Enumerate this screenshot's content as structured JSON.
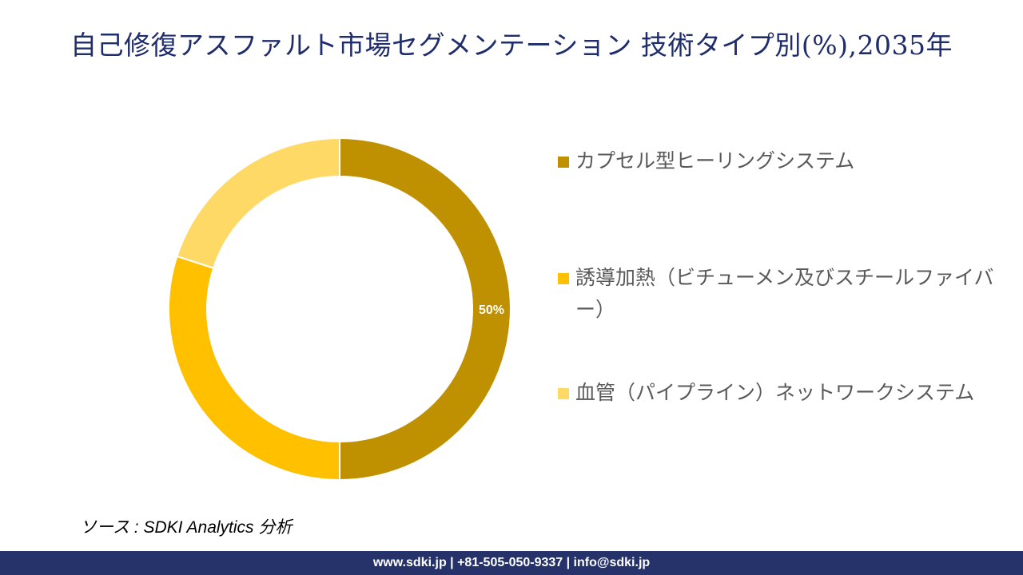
{
  "title": "自己修復アスファルト市場セグメンテーション 技術タイプ別(%),2035年",
  "colors": {
    "title": "#1f2d6b",
    "footer_bg": "#26336b",
    "legend_text": "#595959"
  },
  "chart_data": {
    "type": "pie",
    "donut": true,
    "title": "自己修復アスファルト市場セグメンテーション 技術タイプ別(%),2035年",
    "legend_position": "right",
    "categories": [
      "カプセル型ヒーリングシステム",
      "誘導加熱（ビチューメン及びスチールファイバー）",
      "血管（パイプライン）ネットワークシステム"
    ],
    "values": [
      50,
      30,
      20
    ],
    "colors": [
      "#bf9000",
      "#ffc000",
      "#ffd966"
    ],
    "data_labels": [
      "50%",
      "",
      ""
    ]
  },
  "source": "ソース : SDKI Analytics  分析",
  "footer": "www.sdki.jp | +81-505-050-9337 | info@sdki.jp"
}
